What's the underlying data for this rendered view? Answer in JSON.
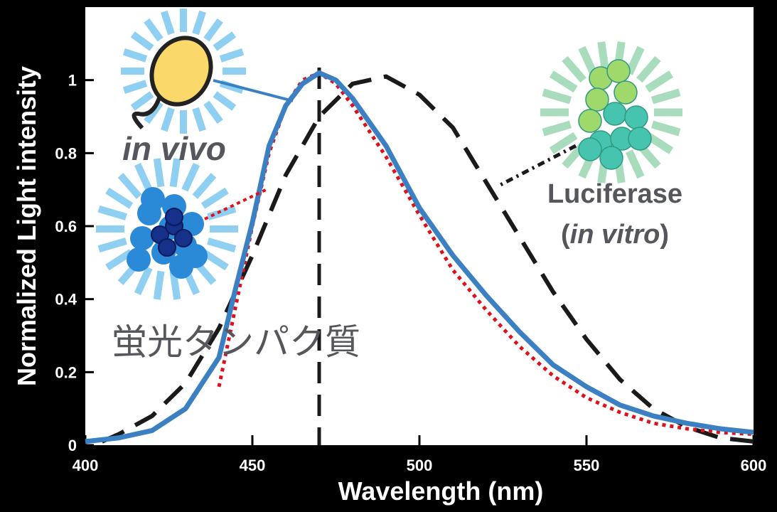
{
  "chart_data": {
    "type": "line",
    "x_label": "Wavelength (nm)",
    "y_label": "Normalized Light intensity",
    "xlim": [
      400,
      600
    ],
    "ylim": [
      0,
      1.2
    ],
    "xticks": [
      400,
      450,
      500,
      550,
      600
    ],
    "yticks": [
      0,
      0.2,
      0.4,
      0.6,
      0.8,
      1
    ],
    "peak_line": 470,
    "series": [
      {
        "name": "in vivo",
        "color": "#3a80c3",
        "x": [
          400,
          410,
          420,
          430,
          440,
          445,
          450,
          455,
          460,
          465,
          470,
          475,
          480,
          490,
          500,
          510,
          520,
          530,
          540,
          550,
          560,
          570,
          580,
          590,
          600
        ],
        "values": [
          0.01,
          0.02,
          0.04,
          0.1,
          0.24,
          0.43,
          0.61,
          0.82,
          0.93,
          0.99,
          1.02,
          1.0,
          0.95,
          0.82,
          0.65,
          0.52,
          0.41,
          0.31,
          0.22,
          0.16,
          0.11,
          0.08,
          0.06,
          0.045,
          0.035
        ]
      },
      {
        "name": "蛍光タンパク質",
        "color": "#e0101a",
        "x": [
          440,
          445,
          450,
          455,
          460,
          465,
          470,
          475,
          480,
          490,
          500,
          510,
          520,
          530,
          540,
          550,
          560,
          570,
          580,
          590,
          600
        ],
        "values": [
          0.16,
          0.38,
          0.6,
          0.8,
          0.93,
          1.0,
          1.02,
          0.99,
          0.93,
          0.79,
          0.63,
          0.48,
          0.37,
          0.27,
          0.19,
          0.13,
          0.09,
          0.06,
          0.045,
          0.035,
          0.03
        ]
      },
      {
        "name": "Luciferase",
        "note": [
          "(",
          "in vitro",
          ")"
        ],
        "color": "#1a1a1a",
        "x": [
          405,
          410,
          420,
          430,
          440,
          450,
          460,
          470,
          480,
          490,
          500,
          510,
          520,
          530,
          540,
          550,
          560,
          570,
          580,
          590,
          600
        ],
        "values": [
          0.01,
          0.03,
          0.08,
          0.17,
          0.32,
          0.52,
          0.74,
          0.9,
          0.99,
          1.01,
          0.96,
          0.87,
          0.72,
          0.57,
          0.42,
          0.29,
          0.18,
          0.1,
          0.05,
          0.02,
          0.01
        ]
      }
    ]
  }
}
